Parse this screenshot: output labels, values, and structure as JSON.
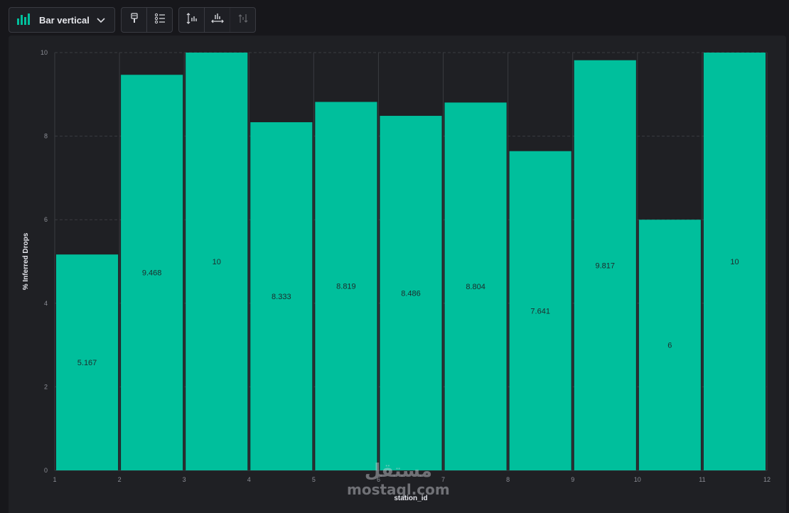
{
  "toolbar": {
    "chart_type_label": "Bar vertical",
    "icons": [
      "bar-chart-icon",
      "chevron-down-icon",
      "paint-brush-icon",
      "legend-list-icon",
      "y-axis-sort-icon",
      "x-axis-icon",
      "swap-axes-icon"
    ]
  },
  "colors": {
    "bar": "#00bf9c",
    "background": "#1f2024",
    "gridline": "#3a3b40"
  },
  "watermark": {
    "arabic": "مستقل",
    "latin": "mostaql.com"
  },
  "chart_data": {
    "type": "bar",
    "categories": [
      "1",
      "2",
      "3",
      "4",
      "5",
      "6",
      "7",
      "8",
      "9",
      "10",
      "11"
    ],
    "values": [
      5.167,
      9.468,
      10,
      8.333,
      8.819,
      8.486,
      8.804,
      7.641,
      9.817,
      6,
      10
    ],
    "value_labels": [
      "5.167",
      "9.468",
      "10",
      "8.333",
      "8.819",
      "8.486",
      "8.804",
      "7.641",
      "9.817",
      "6",
      "10"
    ],
    "xticks": [
      "1",
      "2",
      "3",
      "4",
      "5",
      "6",
      "7",
      "8",
      "9",
      "10",
      "11",
      "12"
    ],
    "xlim": [
      1,
      12
    ],
    "yticks": [
      "0",
      "2",
      "4",
      "6",
      "8",
      "10"
    ],
    "ylim": [
      0,
      10
    ],
    "xlabel": "station_id",
    "ylabel": "% Inferred Drops",
    "title": "",
    "grid": true,
    "legend": "none"
  }
}
